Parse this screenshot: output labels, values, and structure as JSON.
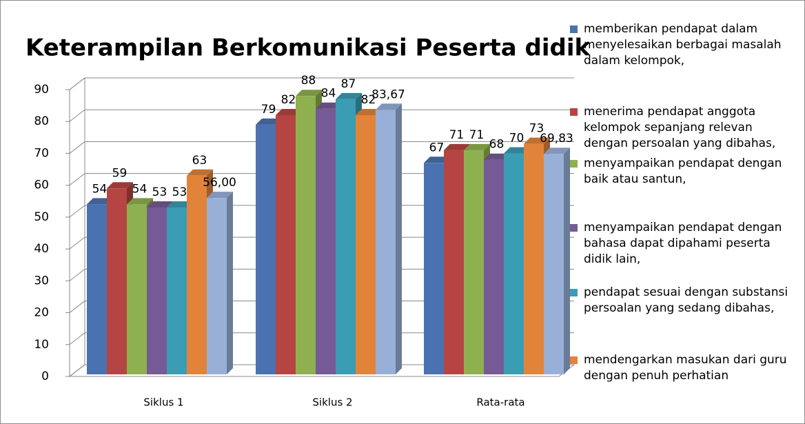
{
  "chart_data": {
    "type": "bar3d",
    "title": "Keterampilan Berkomunikasi  Peserta didik",
    "categories": [
      "Siklus 1",
      "Siklus 2",
      "Rata-rata"
    ],
    "series": [
      {
        "name": "memberikan pendapat dalam menyelesaikan berbagai masalah dalam kelompok,",
        "color": "#4a72b0",
        "values": [
          54,
          79,
          67
        ]
      },
      {
        "name": "menerima pendapat anggota kelompok sepanjang relevan dengan persoalan yang dibahas,",
        "color": "#b54542",
        "values": [
          59,
          82,
          71
        ]
      },
      {
        "name": "menyampaikan pendapat dengan baik atau santun,",
        "color": "#8fb04f",
        "values": [
          54,
          88,
          71
        ]
      },
      {
        "name": "menyampaikan pendapat dengan bahasa dapat dipahami peserta didik lain,",
        "color": "#765a95",
        "values": [
          53,
          84,
          68
        ]
      },
      {
        "name": "pendapat sesuai dengan substansi persoalan yang sedang dibahas,",
        "color": "#3b9db4",
        "values": [
          53,
          87,
          70
        ]
      },
      {
        "name": "mendengarkan masukan dari guru dengan penuh perhatian",
        "color": "#e1843a",
        "values": [
          63,
          82,
          73
        ]
      },
      {
        "color": "#98b0d8",
        "values": [
          56.0,
          83.67,
          69.83
        ],
        "value_labels": [
          "56,00",
          "83,67",
          "69,83"
        ]
      }
    ],
    "ylim": [
      0,
      90
    ],
    "yticks": [
      0,
      10,
      20,
      30,
      40,
      50,
      60,
      70,
      80,
      90
    ],
    "grid": true
  }
}
